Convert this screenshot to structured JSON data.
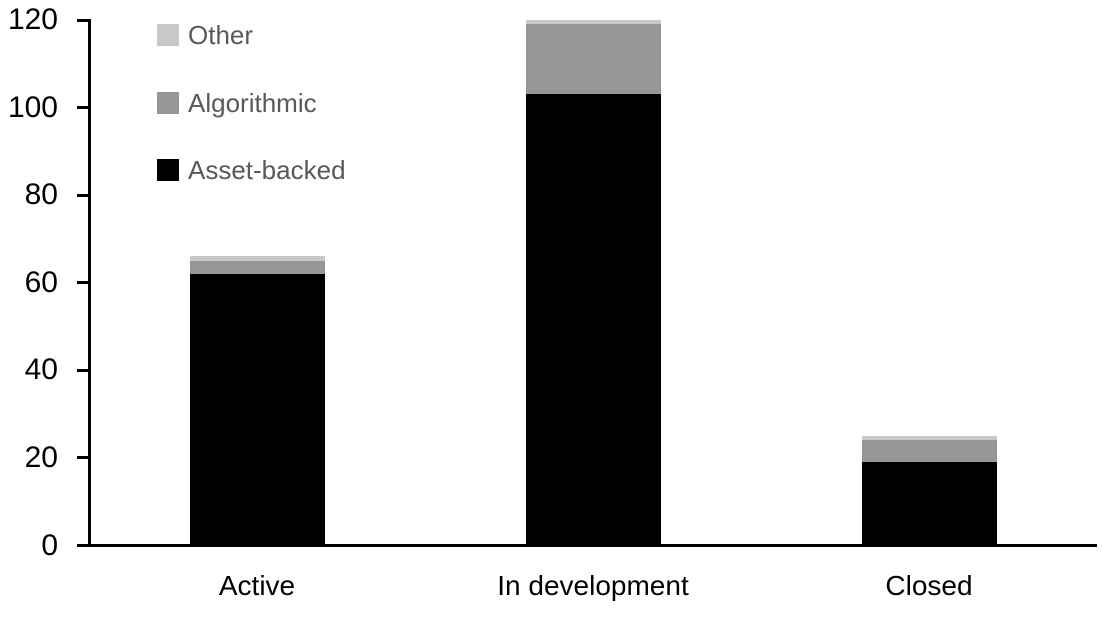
{
  "chart_data": {
    "type": "bar",
    "variant": "stacked-column",
    "title": "",
    "xlabel": "",
    "ylabel": "",
    "categories": [
      "Active",
      "In development",
      "Closed"
    ],
    "series": [
      {
        "name": "Asset-backed",
        "color": "#000000",
        "values": [
          62,
          103,
          19
        ]
      },
      {
        "name": "Algorithmic",
        "color": "#969696",
        "values": [
          3,
          16,
          5
        ]
      },
      {
        "name": "Other",
        "color": "#c8c8c8",
        "values": [
          1,
          1,
          1
        ]
      }
    ],
    "stack_totals": [
      66,
      120,
      25
    ],
    "y_ticks": [
      0,
      20,
      40,
      60,
      80,
      100,
      120
    ],
    "ylim": [
      0,
      120
    ],
    "grid": false,
    "legend": {
      "position": "top-left-inside",
      "entries_top_to_bottom": [
        "Other",
        "Algorithmic",
        "Asset-backed"
      ],
      "text_color": "#595959"
    },
    "axis_color": "#000000"
  }
}
